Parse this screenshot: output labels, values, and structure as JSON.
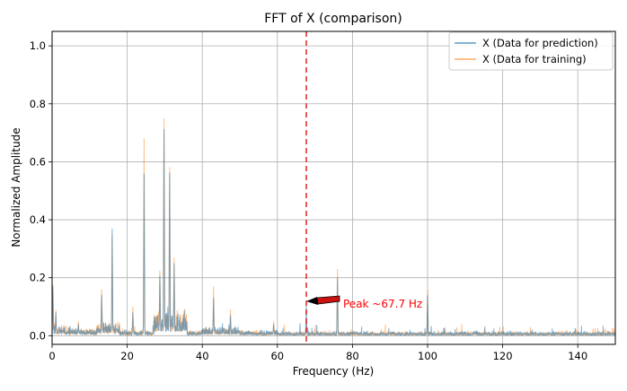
{
  "chart_data": {
    "type": "line",
    "title": "FFT of X (comparison)",
    "xlabel": "Frequency (Hz)",
    "ylabel": "Normalized Amplitude",
    "xlim": [
      0,
      150
    ],
    "ylim": [
      -0.03,
      1.05
    ],
    "xticks": [
      0,
      20,
      40,
      60,
      80,
      100,
      120,
      140
    ],
    "yticks": [
      0.0,
      0.2,
      0.4,
      0.6,
      0.8,
      1.0
    ],
    "xtick_labels": [
      "0",
      "20",
      "40",
      "60",
      "80",
      "100",
      "120",
      "140"
    ],
    "ytick_labels": [
      "0.0",
      "0.2",
      "0.4",
      "0.6",
      "0.8",
      "1.0"
    ],
    "grid": true,
    "legend_position": "top-right",
    "colors": {
      "prediction": "#1f77b4",
      "training": "#ff7f0e",
      "marker": "#e03030",
      "annotation": "#ff0000"
    },
    "series": [
      {
        "name": "X (Data for prediction)",
        "color": "#1f77b4",
        "peaks": [
          [
            0.2,
            0.18
          ],
          [
            1.0,
            0.08
          ],
          [
            7.0,
            0.04
          ],
          [
            13.2,
            0.15
          ],
          [
            16.0,
            0.37
          ],
          [
            21.5,
            0.08
          ],
          [
            24.5,
            0.56
          ],
          [
            28.7,
            0.22
          ],
          [
            29.8,
            0.76
          ],
          [
            31.3,
            0.6
          ],
          [
            32.5,
            0.25
          ],
          [
            43.0,
            0.13
          ],
          [
            47.5,
            0.07
          ],
          [
            59.0,
            0.04
          ],
          [
            67.7,
            0.11
          ],
          [
            76.0,
            0.2
          ],
          [
            100.0,
            0.14
          ]
        ]
      },
      {
        "name": "X (Data for training)",
        "color": "#ff7f0e",
        "peaks": [
          [
            0.2,
            0.19
          ],
          [
            1.0,
            0.09
          ],
          [
            7.0,
            0.05
          ],
          [
            13.2,
            0.17
          ],
          [
            16.0,
            0.35
          ],
          [
            21.5,
            0.1
          ],
          [
            24.5,
            0.68
          ],
          [
            28.7,
            0.24
          ],
          [
            29.8,
            0.8
          ],
          [
            31.3,
            0.62
          ],
          [
            32.5,
            0.27
          ],
          [
            43.0,
            0.17
          ],
          [
            47.5,
            0.09
          ],
          [
            59.0,
            0.05
          ],
          [
            67.7,
            0.06
          ],
          [
            76.0,
            0.23
          ],
          [
            100.0,
            0.16
          ]
        ]
      }
    ],
    "vline": {
      "x": 67.7
    },
    "annotation": {
      "text": "Peak ~67.7 Hz",
      "x": 67.7,
      "y": 0.11
    }
  }
}
